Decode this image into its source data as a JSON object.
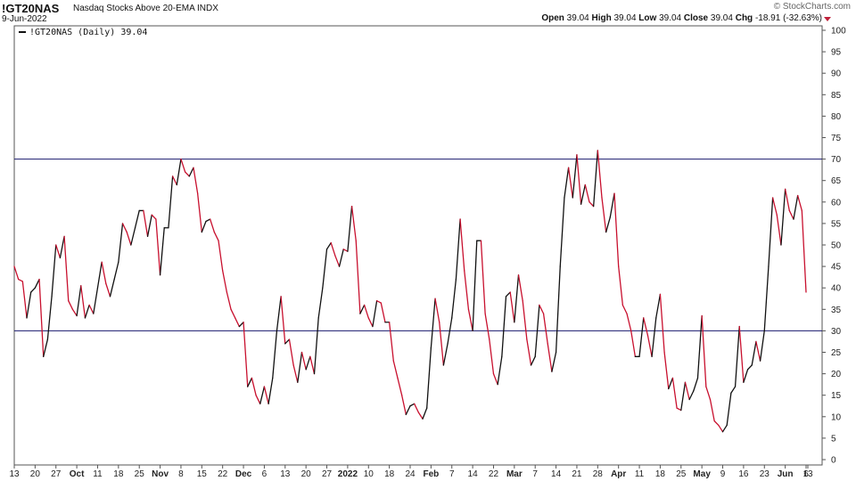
{
  "header": {
    "symbol": "!GT20NAS",
    "name": "Nasdaq Stocks Above 20-EMA",
    "exchange": "INDX",
    "date": "9-Jun-2022",
    "open_label": "Open",
    "open": "39.04",
    "high_label": "High",
    "high": "39.04",
    "low_label": "Low",
    "low": "39.04",
    "close_label": "Close",
    "close": "39.04",
    "chg_label": "Chg",
    "chg": "-18.91 (-32.63%)",
    "logo": "© StockCharts.com"
  },
  "chart_data": {
    "type": "line",
    "legend": "!GT20NAS (Daily) 39.04",
    "legend_position": "top-left",
    "ylim": [
      0,
      100
    ],
    "yticks": [
      0,
      5,
      10,
      15,
      20,
      25,
      30,
      35,
      40,
      45,
      50,
      55,
      60,
      65,
      70,
      75,
      80,
      85,
      90,
      95,
      100
    ],
    "reference_lines": [
      70,
      30
    ],
    "xtick_labels": [
      {
        "label": "13",
        "bold": false
      },
      {
        "label": "20",
        "bold": false
      },
      {
        "label": "27",
        "bold": false
      },
      {
        "label": "Oct",
        "bold": true
      },
      {
        "label": "11",
        "bold": false
      },
      {
        "label": "18",
        "bold": false
      },
      {
        "label": "25",
        "bold": false
      },
      {
        "label": "Nov",
        "bold": true
      },
      {
        "label": "8",
        "bold": false
      },
      {
        "label": "15",
        "bold": false
      },
      {
        "label": "22",
        "bold": false
      },
      {
        "label": "Dec",
        "bold": true
      },
      {
        "label": "6",
        "bold": false
      },
      {
        "label": "13",
        "bold": false
      },
      {
        "label": "20",
        "bold": false
      },
      {
        "label": "27",
        "bold": false
      },
      {
        "label": "2022",
        "bold": true
      },
      {
        "label": "10",
        "bold": false
      },
      {
        "label": "18",
        "bold": false
      },
      {
        "label": "24",
        "bold": false
      },
      {
        "label": "Feb",
        "bold": true
      },
      {
        "label": "7",
        "bold": false
      },
      {
        "label": "14",
        "bold": false
      },
      {
        "label": "22",
        "bold": false
      },
      {
        "label": "Mar",
        "bold": true
      },
      {
        "label": "7",
        "bold": false
      },
      {
        "label": "14",
        "bold": false
      },
      {
        "label": "21",
        "bold": false
      },
      {
        "label": "28",
        "bold": false
      },
      {
        "label": "Apr",
        "bold": true
      },
      {
        "label": "11",
        "bold": false
      },
      {
        "label": "18",
        "bold": false
      },
      {
        "label": "25",
        "bold": false
      },
      {
        "label": "May",
        "bold": true
      },
      {
        "label": "9",
        "bold": false
      },
      {
        "label": "16",
        "bold": false
      },
      {
        "label": "23",
        "bold": false
      },
      {
        "label": "Jun",
        "bold": true
      },
      {
        "label": "6",
        "bold": false
      },
      {
        "label": "13",
        "bold": false
      }
    ],
    "x_range": [
      0,
      190
    ],
    "xtick_index": [
      0,
      5,
      10,
      15,
      20,
      25,
      30,
      35,
      40,
      45,
      50,
      55,
      60,
      65,
      70,
      75,
      80,
      85,
      90,
      95,
      100,
      105,
      110,
      115,
      120,
      125,
      130,
      135,
      140,
      145,
      150,
      155,
      160,
      165,
      170,
      175,
      180,
      185,
      190,
      200
    ],
    "series": [
      {
        "up_color": "#111111",
        "down_color": "#c8102e",
        "values": [
          45,
          42,
          41.5,
          33,
          39,
          40,
          42,
          24,
          28,
          38,
          50,
          47,
          52,
          37,
          35,
          33.5,
          40.5,
          33,
          36,
          34,
          40,
          46,
          41,
          38,
          42,
          46,
          55,
          53,
          50,
          54,
          58,
          58,
          52,
          57,
          56,
          43,
          54,
          54,
          66,
          64,
          70,
          67,
          66,
          68,
          62,
          53,
          55.5,
          56,
          53,
          51,
          44,
          39,
          35,
          33,
          31,
          32,
          17,
          19,
          15,
          13,
          17,
          13,
          19,
          30,
          38,
          27,
          28,
          22,
          18,
          25,
          21,
          24,
          20,
          33,
          40,
          49,
          50.5,
          47.5,
          45,
          49,
          48.5,
          59,
          51,
          34,
          36,
          33,
          31,
          37,
          36.5,
          32,
          32,
          23,
          19,
          15,
          10.5,
          12.5,
          13,
          11,
          9.5,
          12,
          26,
          37.5,
          32,
          22,
          27,
          33,
          42,
          56,
          44,
          35,
          30,
          51,
          51,
          34,
          28,
          20,
          17.5,
          24,
          38,
          39,
          32,
          43,
          37,
          28,
          22,
          24,
          36,
          34,
          27,
          20.5,
          25,
          45,
          61,
          68,
          61,
          71,
          59.5,
          64,
          60,
          59,
          72,
          61,
          53,
          56.5,
          62,
          45,
          36,
          34,
          30,
          24,
          24,
          33,
          29,
          24,
          33,
          38.5,
          25,
          16.5,
          19,
          12,
          11.5,
          18,
          14,
          16,
          19,
          33.5,
          17,
          14,
          9,
          8,
          6.5,
          8,
          15.5,
          17,
          31,
          18,
          21,
          22,
          27.5,
          23,
          30,
          45,
          61,
          57,
          50,
          63,
          58,
          56,
          61.5,
          58,
          39
        ]
      }
    ]
  }
}
